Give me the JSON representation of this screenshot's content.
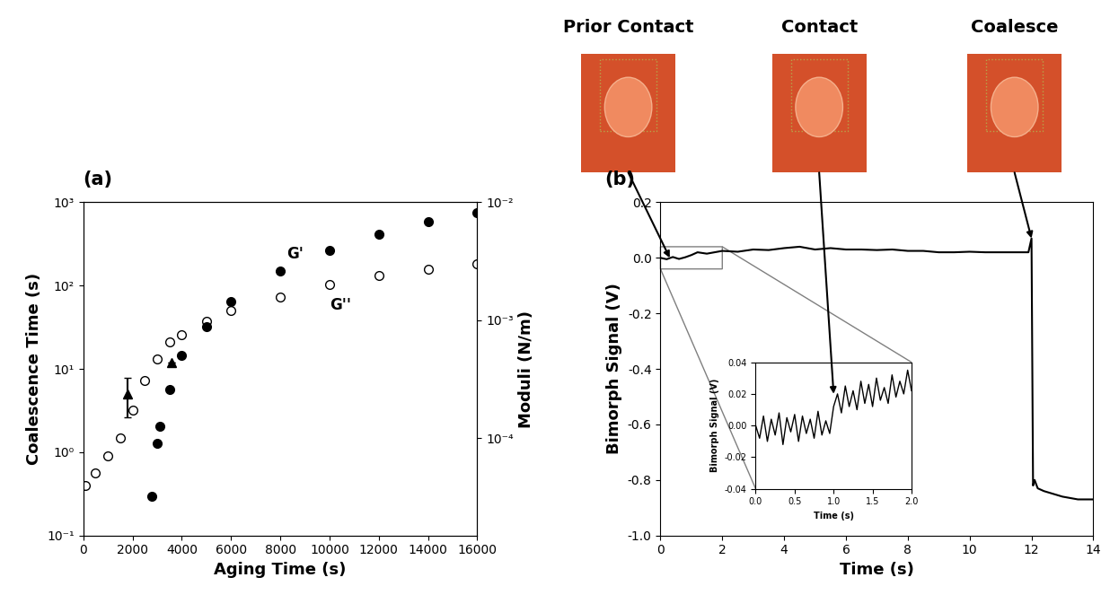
{
  "chart_data": [
    {
      "type": "scatter",
      "annotations": [
        "(a)"
      ],
      "x_label": "Aging Time (s)",
      "y_label": "Coalescence Time (s)",
      "y2_label": "Moduli (N/m)",
      "log": "y",
      "xlim": [
        0,
        16000
      ],
      "xticks": [
        0,
        2000,
        4000,
        6000,
        8000,
        10000,
        12000,
        14000,
        16000
      ],
      "ylim": [
        0.1,
        1000
      ],
      "yticks": [
        {
          "value": 0.1,
          "label": "10⁻¹"
        },
        {
          "value": 1,
          "label": "10⁰"
        },
        {
          "value": 10,
          "label": "10¹"
        },
        {
          "value": 100,
          "label": "10²"
        },
        {
          "value": 1000,
          "label": "10³"
        }
      ],
      "y2lim": [
        1.5e-05,
        0.01
      ],
      "y2ticks": [
        {
          "value": 0.0001,
          "label": "10⁻⁴"
        },
        {
          "value": 0.001,
          "label": "10⁻³"
        },
        {
          "value": 0.01,
          "label": "10⁻²"
        }
      ],
      "series": [
        {
          "color": "#000000",
          "marker": "triangle",
          "line_style": "none",
          "x": [
            1800,
            3600
          ],
          "values": [
            5.0,
            12.0
          ],
          "error_low": [
            2.4,
            null
          ],
          "error_high": [
            2.8,
            null
          ]
        },
        {
          "name": "G'",
          "axis": "y2",
          "color": "#000000",
          "marker": "circle",
          "line_style": "none",
          "x": [
            2800,
            3000,
            3100,
            3500,
            4000,
            5000,
            6000,
            8000,
            10000,
            12000,
            14000,
            16000
          ],
          "values": [
            3.2e-05,
            9.1e-05,
            0.000126,
            0.00026,
            0.0005,
            0.00089,
            0.00145,
            0.0026,
            0.0039,
            0.0054,
            0.0069,
            0.0081
          ]
        },
        {
          "name": "G''",
          "axis": "y2",
          "color": "#000000",
          "marker": "open_circle",
          "line_style": "none",
          "x": [
            100,
            500,
            1000,
            1500,
            2000,
            2500,
            3000,
            3500,
            4000,
            5000,
            6000,
            8000,
            10000,
            12000,
            14000,
            16000
          ],
          "values": [
            4e-05,
            5.1e-05,
            7.1e-05,
            0.0001,
            0.000174,
            0.00031,
            0.00047,
            0.00065,
            0.00076,
            0.00098,
            0.0012,
            0.00158,
            0.002,
            0.0024,
            0.0027,
            0.003
          ]
        }
      ]
    },
    {
      "type": "line",
      "annotations": [
        "(b)"
      ],
      "x_label": "Time (s)",
      "y_label": "Bimorph Signal (V)",
      "xlim": [
        0,
        14
      ],
      "xticks": [
        0,
        2,
        4,
        6,
        8,
        10,
        12,
        14
      ],
      "ylim": [
        -1.0,
        0.2
      ],
      "yticks": [
        -1.0,
        -0.8,
        -0.6,
        -0.4,
        -0.2,
        0.0,
        0.2
      ],
      "color": "#000000",
      "x": [
        0,
        0.2,
        0.4,
        0.6,
        0.8,
        1.0,
        1.2,
        1.5,
        2,
        2.5,
        3,
        3.5,
        4,
        4.5,
        5,
        5.5,
        6,
        6.5,
        7,
        7.5,
        8,
        8.5,
        9,
        9.5,
        10,
        10.5,
        11,
        11.5,
        11.9,
        12.0,
        12.05,
        12.1,
        12.2,
        12.4,
        12.7,
        13,
        13.5,
        14
      ],
      "values": [
        0.0,
        -0.005,
        0.003,
        -0.004,
        0.002,
        0.01,
        0.02,
        0.015,
        0.025,
        0.022,
        0.03,
        0.028,
        0.035,
        0.04,
        0.03,
        0.035,
        0.03,
        0.03,
        0.028,
        0.03,
        0.025,
        0.025,
        0.02,
        0.02,
        0.022,
        0.02,
        0.02,
        0.02,
        0.02,
        0.07,
        -0.82,
        -0.8,
        -0.83,
        -0.84,
        -0.85,
        -0.86,
        -0.87,
        -0.87
      ],
      "photos": [
        {
          "text": "Prior Contact",
          "x": 0.3,
          "y": 0.0,
          "axis": "main"
        },
        {
          "text": "Contact",
          "x": 1.0,
          "y": 0.02,
          "axis": "inset"
        },
        {
          "text": "Coalesce",
          "x": 12.0,
          "y": 0.07,
          "axis": "main"
        }
      ],
      "inset": {
        "type": "line",
        "x_label": "Time (s)",
        "y_label": "Bimorph Signal (V)",
        "xlim": [
          0.0,
          2.0
        ],
        "xticks": [
          0.0,
          0.5,
          1.0,
          1.5,
          2.0
        ],
        "ylim": [
          -0.04,
          0.04
        ],
        "yticks": [
          -0.04,
          -0.02,
          {
            "value": 0,
            "label": "0.00"
          },
          0.02,
          0.04
        ],
        "color": "#000000",
        "x": [
          0.0,
          0.05,
          0.1,
          0.15,
          0.2,
          0.25,
          0.3,
          0.35,
          0.4,
          0.45,
          0.5,
          0.55,
          0.6,
          0.65,
          0.7,
          0.75,
          0.8,
          0.85,
          0.9,
          0.95,
          1.0,
          1.05,
          1.1,
          1.15,
          1.2,
          1.25,
          1.3,
          1.35,
          1.4,
          1.45,
          1.5,
          1.55,
          1.6,
          1.65,
          1.7,
          1.75,
          1.8,
          1.85,
          1.9,
          1.95,
          2.0
        ],
        "values": [
          0.0,
          -0.008,
          0.006,
          -0.01,
          0.004,
          -0.006,
          0.008,
          -0.012,
          0.005,
          -0.004,
          0.007,
          -0.01,
          0.006,
          -0.005,
          0.004,
          -0.008,
          0.009,
          -0.006,
          0.003,
          -0.005,
          0.012,
          0.02,
          0.008,
          0.025,
          0.012,
          0.022,
          0.01,
          0.028,
          0.014,
          0.026,
          0.012,
          0.03,
          0.016,
          0.024,
          0.014,
          0.032,
          0.018,
          0.028,
          0.02,
          0.035,
          0.022
        ]
      }
    }
  ]
}
